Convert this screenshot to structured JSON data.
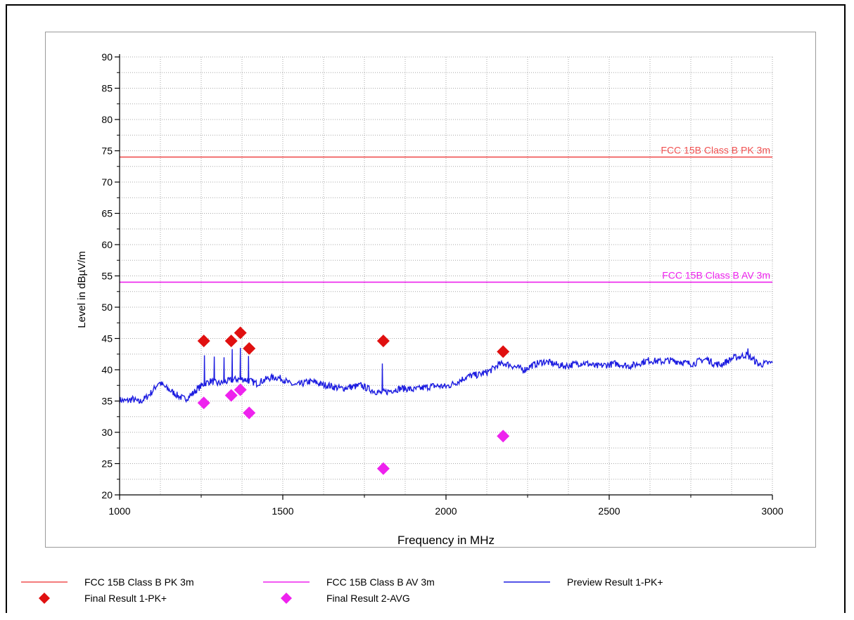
{
  "chart_data": {
    "type": "line",
    "title": "",
    "xlabel": "Frequency in MHz",
    "ylabel": "Level in dBµV/m",
    "xlim": [
      1000,
      3000
    ],
    "ylim": [
      20,
      90
    ],
    "x_ticks": [
      "1000",
      "1500",
      "2000",
      "2500",
      "3000"
    ],
    "y_ticks": [
      "20",
      "25",
      "30",
      "35",
      "40",
      "45",
      "50",
      "55",
      "60",
      "65",
      "70",
      "75",
      "80",
      "85",
      "90"
    ],
    "grid": true,
    "legend_position": "bottom",
    "limit_lines": [
      {
        "name": "FCC 15B Class B PK 3m",
        "value": 74,
        "color": "#f05050"
      },
      {
        "name": "FCC 15B Class B AV 3m",
        "value": 54,
        "color": "#ee22ee"
      }
    ],
    "preview_series": {
      "name": "Preview Result 1-PK+",
      "color": "#1c1ce0",
      "x": [
        1000,
        1020,
        1040,
        1060,
        1080,
        1100,
        1120,
        1140,
        1160,
        1180,
        1200,
        1220,
        1240,
        1260,
        1280,
        1300,
        1320,
        1340,
        1360,
        1380,
        1400,
        1420,
        1440,
        1460,
        1480,
        1500,
        1520,
        1540,
        1560,
        1580,
        1600,
        1620,
        1640,
        1660,
        1680,
        1700,
        1720,
        1740,
        1760,
        1780,
        1800,
        1820,
        1840,
        1860,
        1880,
        1900,
        1920,
        1940,
        1960,
        1980,
        2000,
        2020,
        2040,
        2060,
        2080,
        2100,
        2120,
        2140,
        2160,
        2180,
        2200,
        2220,
        2240,
        2260,
        2280,
        2300,
        2320,
        2340,
        2360,
        2380,
        2400,
        2420,
        2440,
        2460,
        2480,
        2500,
        2520,
        2540,
        2560,
        2580,
        2600,
        2620,
        2640,
        2660,
        2680,
        2700,
        2720,
        2740,
        2760,
        2780,
        2800,
        2820,
        2840,
        2860,
        2880,
        2900,
        2920,
        2940,
        2960,
        2980,
        3000
      ],
      "y": [
        35.2,
        35.0,
        35.3,
        34.8,
        35.5,
        36.5,
        38.0,
        37.2,
        36.5,
        35.8,
        35.3,
        36.0,
        37.0,
        37.8,
        38.2,
        37.8,
        38.0,
        38.3,
        38.5,
        38.5,
        38.2,
        37.8,
        38.3,
        38.7,
        38.8,
        38.5,
        37.8,
        37.5,
        37.8,
        38.1,
        38.0,
        37.6,
        37.5,
        37.2,
        37.0,
        37.2,
        37.3,
        37.5,
        37.0,
        36.6,
        36.3,
        36.5,
        36.8,
        37.0,
        37.0,
        36.8,
        37.0,
        37.2,
        37.4,
        37.4,
        37.3,
        37.7,
        38.2,
        38.8,
        39.1,
        39.2,
        39.5,
        40.0,
        40.8,
        41.0,
        40.7,
        40.3,
        40.0,
        40.6,
        41.0,
        41.3,
        41.1,
        40.8,
        40.6,
        40.7,
        41.0,
        41.1,
        40.9,
        40.5,
        40.7,
        40.8,
        41.0,
        40.8,
        40.6,
        40.8,
        41.2,
        41.5,
        41.4,
        41.3,
        41.5,
        41.4,
        41.3,
        41.0,
        41.0,
        41.5,
        41.7,
        41.0,
        40.8,
        41.3,
        41.9,
        42.1,
        42.4,
        41.7,
        40.8,
        41.0,
        41.1
      ],
      "spikes": [
        {
          "x": 1260,
          "y": 42.3
        },
        {
          "x": 1290,
          "y": 42.1
        },
        {
          "x": 1320,
          "y": 42.0
        },
        {
          "x": 1345,
          "y": 43.3
        },
        {
          "x": 1370,
          "y": 43.5
        },
        {
          "x": 1395,
          "y": 42.2
        },
        {
          "x": 1805,
          "y": 41.0
        },
        {
          "x": 2925,
          "y": 43.4
        }
      ]
    },
    "final_results": [
      {
        "name": "Final Result 1-PK+",
        "color": "#e01010",
        "points": [
          {
            "x": 1258,
            "y": 44.6
          },
          {
            "x": 1342,
            "y": 44.6
          },
          {
            "x": 1370,
            "y": 45.9
          },
          {
            "x": 1397,
            "y": 43.4
          },
          {
            "x": 1808,
            "y": 44.6
          },
          {
            "x": 2175,
            "y": 42.9
          }
        ]
      },
      {
        "name": "Final Result 2-AVG",
        "color": "#ee22ee",
        "points": [
          {
            "x": 1258,
            "y": 34.7
          },
          {
            "x": 1342,
            "y": 35.9
          },
          {
            "x": 1370,
            "y": 36.8
          },
          {
            "x": 1397,
            "y": 33.1
          },
          {
            "x": 1808,
            "y": 24.2
          },
          {
            "x": 2175,
            "y": 29.4
          }
        ]
      }
    ],
    "legend": [
      {
        "label": "FCC 15B Class B PK 3m",
        "kind": "line",
        "color": "#f05050"
      },
      {
        "label": "FCC 15B Class B AV 3m",
        "kind": "line",
        "color": "#ee22ee"
      },
      {
        "label": "Preview Result 1-PK+",
        "kind": "line",
        "color": "#1c1ce0"
      },
      {
        "label": "Final Result 1-PK+",
        "kind": "diamond",
        "color": "#e01010"
      },
      {
        "label": "Final Result 2-AVG",
        "kind": "diamond",
        "color": "#ee22ee"
      }
    ]
  }
}
